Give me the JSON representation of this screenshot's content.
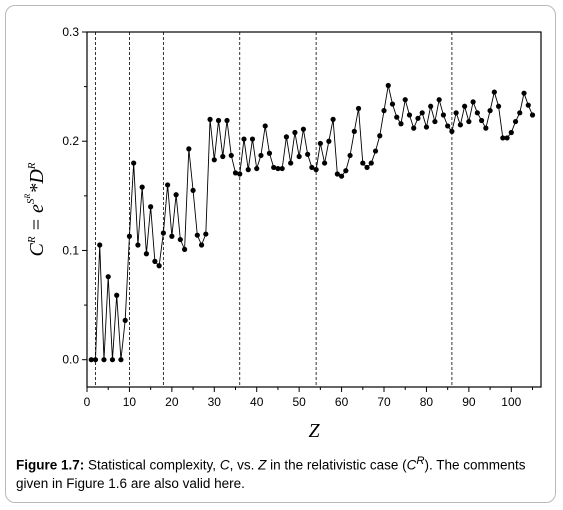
{
  "caption": {
    "label": "Figure 1.7:",
    "text_1": " Statistical complexity, ",
    "c_symbol": "C",
    "text_2": ", vs. ",
    "z_symbol": "Z",
    "text_3": " in the relativistic case (",
    "cr_base": "C",
    "cr_sup": "R",
    "text_4": "). The comments given in Figure 1.6 are also valid here."
  },
  "chart_data": {
    "type": "line",
    "xlabel": "Z",
    "ylabel": "CR = eSR*DR",
    "xlim": [
      0,
      107
    ],
    "ylim": [
      -0.025,
      0.3
    ],
    "xticks": [
      0,
      10,
      20,
      30,
      40,
      50,
      60,
      70,
      80,
      90,
      100
    ],
    "yticks": [
      0.0,
      0.1,
      0.2,
      0.3
    ],
    "ytick_labels": [
      "0.0",
      "0.1",
      "0.2",
      "0.3"
    ],
    "grid": false,
    "vlines": [
      2,
      10,
      18,
      36,
      54,
      86
    ],
    "series": [
      {
        "marker": "circle",
        "color": "#000000",
        "x": [
          1,
          2,
          3,
          4,
          5,
          6,
          7,
          8,
          9,
          10,
          11,
          12,
          13,
          14,
          15,
          16,
          17,
          18,
          19,
          20,
          21,
          22,
          23,
          24,
          25,
          26,
          27,
          28,
          29,
          30,
          31,
          32,
          33,
          34,
          35,
          36,
          37,
          38,
          39,
          40,
          41,
          42,
          43,
          44,
          45,
          46,
          47,
          48,
          49,
          50,
          51,
          52,
          53,
          54,
          55,
          56,
          57,
          58,
          59,
          60,
          61,
          62,
          63,
          64,
          65,
          66,
          67,
          68,
          69,
          70,
          71,
          72,
          73,
          74,
          75,
          76,
          77,
          78,
          79,
          80,
          81,
          82,
          83,
          84,
          85,
          86,
          87,
          88,
          89,
          90,
          91,
          92,
          93,
          94,
          95,
          96,
          97,
          98,
          99,
          100,
          101,
          102,
          103,
          104,
          105
        ],
        "y": [
          0.0,
          0.0,
          0.105,
          0.0,
          0.076,
          0.0,
          0.059,
          0.0,
          0.036,
          0.113,
          0.18,
          0.105,
          0.158,
          0.097,
          0.14,
          0.09,
          0.086,
          0.116,
          0.16,
          0.113,
          0.151,
          0.11,
          0.101,
          0.193,
          0.155,
          0.114,
          0.105,
          0.115,
          0.22,
          0.183,
          0.219,
          0.186,
          0.219,
          0.187,
          0.171,
          0.17,
          0.202,
          0.174,
          0.202,
          0.175,
          0.187,
          0.214,
          0.189,
          0.176,
          0.175,
          0.175,
          0.204,
          0.18,
          0.208,
          0.186,
          0.211,
          0.188,
          0.176,
          0.174,
          0.198,
          0.18,
          0.2,
          0.22,
          0.17,
          0.168,
          0.173,
          0.187,
          0.209,
          0.23,
          0.18,
          0.176,
          0.18,
          0.191,
          0.205,
          0.228,
          0.251,
          0.234,
          0.222,
          0.216,
          0.238,
          0.224,
          0.212,
          0.221,
          0.226,
          0.213,
          0.232,
          0.218,
          0.238,
          0.224,
          0.214,
          0.209,
          0.226,
          0.215,
          0.232,
          0.218,
          0.236,
          0.226,
          0.219,
          0.212,
          0.228,
          0.245,
          0.232,
          0.203,
          0.203,
          0.208,
          0.218,
          0.226,
          0.244,
          0.233,
          0.224
        ]
      }
    ]
  }
}
